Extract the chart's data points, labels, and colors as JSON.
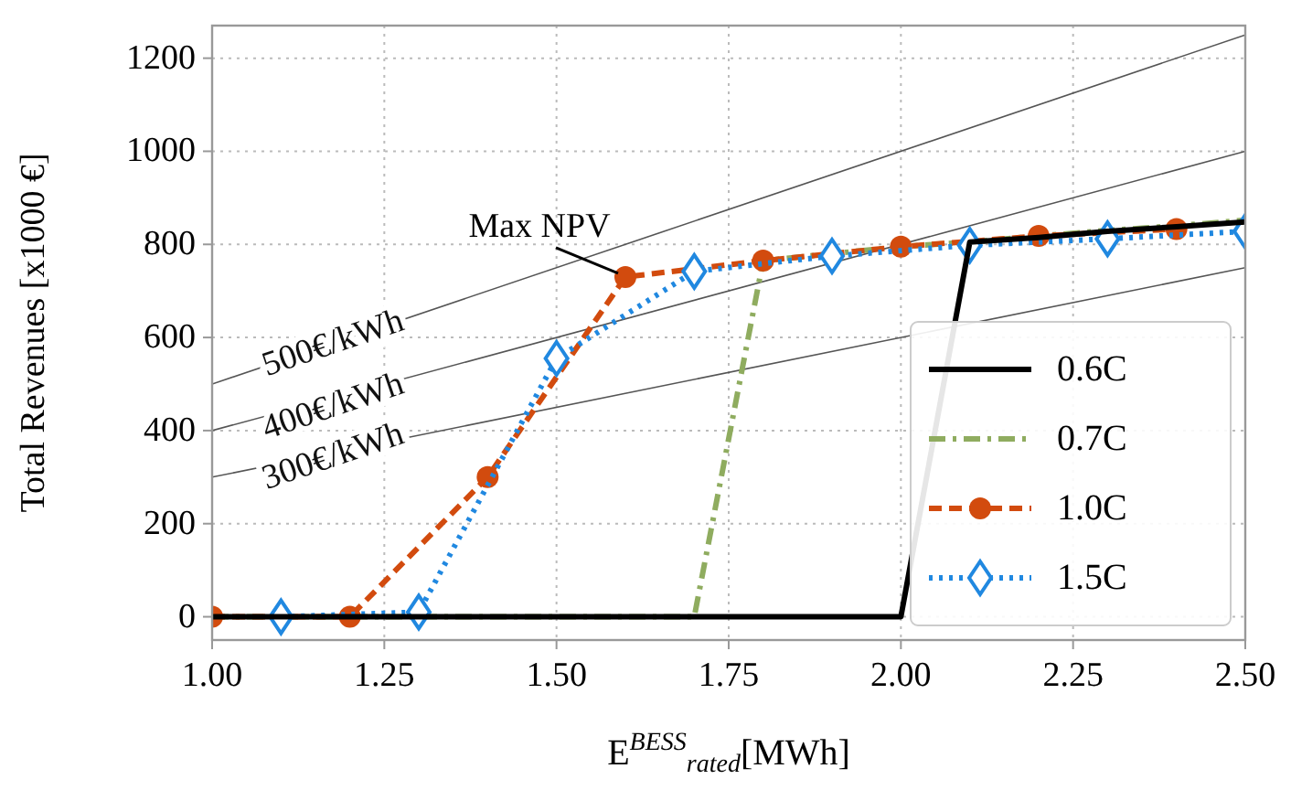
{
  "chart_data": {
    "type": "line",
    "xlabel": "E$^{BESS}$$_{rated}$[MWh]",
    "ylabel": "Total Revenues [x1000 €]",
    "xlim": [
      1,
      2.5
    ],
    "xticks": [
      {
        "value": 1,
        "label": "1.00"
      },
      {
        "value": 1.25,
        "label": "1.25"
      },
      {
        "value": 1.5,
        "label": "1.50"
      },
      {
        "value": 1.75,
        "label": "1.75"
      },
      {
        "value": 2,
        "label": "2.00"
      },
      {
        "value": 2.25,
        "label": "2.25"
      },
      {
        "value": 2.5,
        "label": "2.50"
      }
    ],
    "ylim": [
      -50,
      1270
    ],
    "yticks": [
      0,
      200,
      400,
      600,
      800,
      1000,
      1200
    ],
    "grid": true,
    "legend": "bottom right",
    "series": [
      {
        "x": [
          1,
          2.5
        ],
        "values": [
          500,
          1250
        ],
        "color": "#555555",
        "line_style": "solid",
        "marker": "none"
      },
      {
        "x": [
          1,
          2.5
        ],
        "values": [
          400,
          1000
        ],
        "color": "#555555",
        "line_style": "solid",
        "marker": "none"
      },
      {
        "x": [
          1,
          2.5
        ],
        "values": [
          300,
          750
        ],
        "color": "#555555",
        "line_style": "solid",
        "marker": "none"
      },
      {
        "name": "0.6C",
        "x": [
          1,
          2,
          2.1,
          2.2,
          2.3,
          2.4,
          2.5
        ],
        "values": [
          0,
          0,
          805,
          815,
          828,
          838,
          848
        ],
        "color": "#000000",
        "line_style": "solid",
        "marker": "none"
      },
      {
        "name": "0.7C",
        "x": [
          1,
          1.7,
          1.8,
          1.9,
          2,
          2.1,
          2.2,
          2.3,
          2.4,
          2.5
        ],
        "values": [
          0,
          0,
          765,
          780,
          795,
          805,
          818,
          830,
          840,
          852
        ],
        "color": "#8fac5f",
        "line_style": "dashdot",
        "marker": "none"
      },
      {
        "name": "1.0C",
        "x": [
          1,
          1.2,
          1.4,
          1.6,
          1.8,
          2,
          2.2,
          2.4
        ],
        "values": [
          0,
          0,
          300,
          730,
          765,
          795,
          818,
          833
        ],
        "color": "#d24b0e",
        "line_style": "dashed",
        "marker": "circle"
      },
      {
        "name": "1.5C",
        "x": [
          1.1,
          1.3,
          1.5,
          1.7,
          1.9,
          2.1,
          2.3,
          2.5
        ],
        "values": [
          0,
          10,
          555,
          742,
          775,
          798,
          812,
          828
        ],
        "color": "#2088e0",
        "line_style": "dotted",
        "marker": "diamond"
      }
    ],
    "annotations": [
      "500€/kWh",
      "400€/kWh",
      "300€/kWh",
      {
        "text": "Max NPV",
        "x": 1.6,
        "y": 730
      }
    ]
  }
}
